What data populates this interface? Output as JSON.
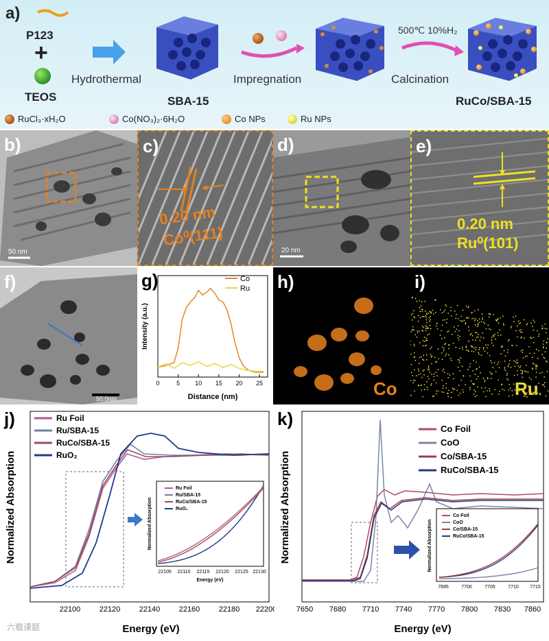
{
  "panel_a": {
    "letter": "a)",
    "p123": "P123",
    "plus": "+",
    "teos": "TEOS",
    "step1": "Hydrothermal",
    "sba": "SBA-15",
    "step2": "Impregnation",
    "cond": "500℃ 10%H₂",
    "step3": "Calcination",
    "product": "RuCo/SBA-15",
    "legend": [
      "RuCl₃·xH₂O",
      "Co(NO₃)₂·6H₂O",
      "Co NPs",
      "Ru NPs"
    ],
    "colors": {
      "ru_precursor": "#c8651b",
      "co_precursor": "#e89ac8",
      "co_np": "#f0a030",
      "ru_np": "#e8e840",
      "sba": "#3a4fbf"
    }
  },
  "panel_b": {
    "letter": "b)",
    "scale": "50 nm"
  },
  "panel_c": {
    "letter": "c)",
    "spacing": "0.20 nm",
    "plane": "Co⁰(111)"
  },
  "panel_d": {
    "letter": "d)",
    "scale": "20 nm"
  },
  "panel_e": {
    "letter": "e)",
    "spacing": "0.20 nm",
    "plane": "Ru⁰(101)"
  },
  "panel_f": {
    "letter": "f)",
    "scale": "50.0nm"
  },
  "panel_g": {
    "letter": "g)",
    "xlabel": "Distance (nm)",
    "ylabel": "Intensity (a.u.)",
    "legend": [
      "Co",
      "Ru"
    ],
    "xticks": [
      "0",
      "5",
      "10",
      "15",
      "20",
      "25"
    ]
  },
  "panel_h": {
    "letter": "h)",
    "element": "Co"
  },
  "panel_i": {
    "letter": "i)",
    "element": "Ru"
  },
  "panel_j": {
    "letter": "j)",
    "xlabel": "Energy (eV)",
    "ylabel": "Normalized Absorption",
    "legend": [
      "Ru Foil",
      "Ru/SBA-15",
      "RuCo/SBA-15",
      "RuO₂"
    ],
    "xticks": [
      "22100",
      "22120",
      "22140",
      "22160",
      "22180",
      "22200"
    ],
    "inset_xticks": [
      "22105",
      "22110",
      "22115",
      "22120",
      "22125",
      "22130"
    ],
    "inset_xlabel": "Energy (eV)",
    "inset_ylabel": "Normalized Absorption"
  },
  "panel_k": {
    "letter": "k)",
    "xlabel": "Energy (eV)",
    "ylabel": "Normalized Absorption",
    "legend": [
      "Co Foil",
      "CoO",
      "Co/SBA-15",
      "RuCo/SBA-15"
    ],
    "xticks": [
      "7650",
      "7680",
      "7710",
      "7740",
      "7770",
      "7800",
      "7830",
      "7860"
    ],
    "inset_xticks": [
      "7695",
      "7700",
      "7705",
      "7710",
      "7715"
    ],
    "inset_ylabel": "Normalized Absorption"
  },
  "watermark": "六载课题",
  "chart_data": [
    {
      "type": "line",
      "panel": "g",
      "xlabel": "Distance (nm)",
      "ylabel": "Intensity (a.u.)",
      "xlim": [
        0,
        27
      ],
      "series": [
        {
          "name": "Co",
          "color": "#e08a1e",
          "x": [
            0,
            2,
            4,
            5,
            6,
            7,
            8,
            9,
            10,
            11,
            12,
            13,
            14,
            15,
            16,
            17,
            18,
            19,
            20,
            21,
            22,
            23,
            24,
            25,
            26
          ],
          "y": [
            0.1,
            0.12,
            0.15,
            0.3,
            0.6,
            0.72,
            0.78,
            0.82,
            0.9,
            0.85,
            0.88,
            0.92,
            0.87,
            0.8,
            0.78,
            0.7,
            0.55,
            0.35,
            0.2,
            0.12,
            0.08,
            0.06,
            0.05,
            0.05,
            0.05
          ]
        },
        {
          "name": "Ru",
          "color": "#e8d838",
          "x": [
            0,
            2,
            4,
            6,
            8,
            10,
            12,
            14,
            16,
            18,
            20,
            22,
            24,
            26
          ],
          "y": [
            0.1,
            0.14,
            0.09,
            0.15,
            0.12,
            0.16,
            0.11,
            0.14,
            0.1,
            0.13,
            0.09,
            0.07,
            0.06,
            0.06
          ]
        }
      ]
    },
    {
      "type": "line",
      "panel": "j",
      "xlabel": "Energy (eV)",
      "ylabel": "Normalized Absorption",
      "xlim": [
        22085,
        22205
      ],
      "series": [
        {
          "name": "Ru Foil",
          "color": "#b05a8a"
        },
        {
          "name": "Ru/SBA-15",
          "color": "#6d7fa8"
        },
        {
          "name": "RuCo/SBA-15",
          "color": "#9e4a5a"
        },
        {
          "name": "RuO₂",
          "color": "#1f3a8a"
        }
      ]
    },
    {
      "type": "line",
      "panel": "k",
      "xlabel": "Energy (eV)",
      "ylabel": "Normalized Absorption",
      "xlim": [
        7650,
        7880
      ],
      "series": [
        {
          "name": "Co Foil",
          "color": "#b04a60"
        },
        {
          "name": "CoO",
          "color": "#7a86a8"
        },
        {
          "name": "Co/SBA-15",
          "color": "#a03a48"
        },
        {
          "name": "RuCo/SBA-15",
          "color": "#243a7a"
        }
      ]
    }
  ]
}
